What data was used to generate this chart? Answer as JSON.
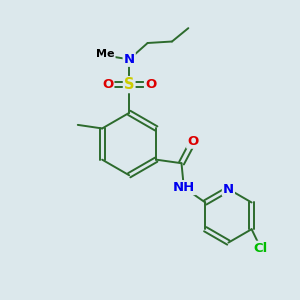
{
  "background_color": "#dce8ec",
  "bond_color": "#2d6b2d",
  "atom_colors": {
    "N": "#0000ee",
    "O": "#dd0000",
    "S": "#cccc00",
    "Cl": "#00bb00",
    "C": "#000000",
    "H": "#2d6b2d"
  },
  "bond_width": 1.4,
  "font_size": 9.5,
  "figsize": [
    3.0,
    3.0
  ],
  "dpi": 100,
  "xlim": [
    0,
    10
  ],
  "ylim": [
    0,
    10
  ]
}
